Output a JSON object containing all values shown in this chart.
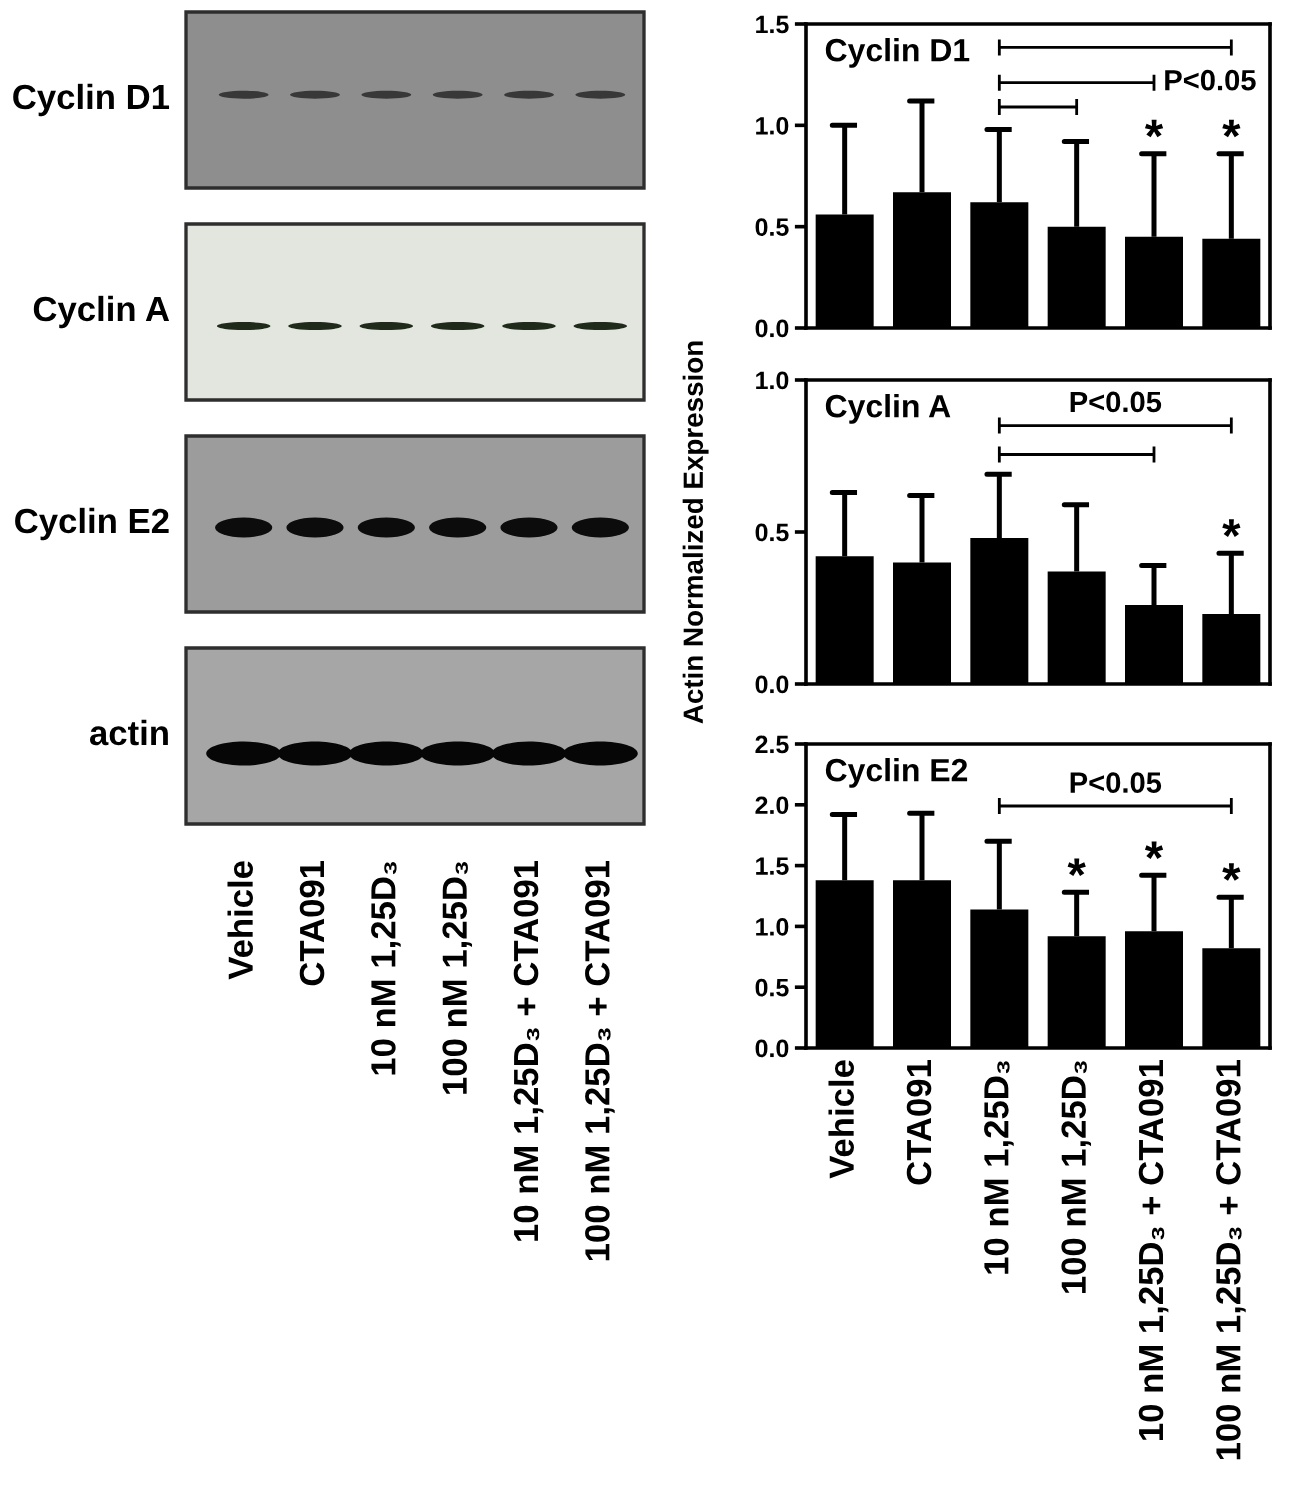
{
  "chart_data": [
    {
      "type": "other",
      "categories": [
        "Vehicle",
        "CTA091",
        "10 nM 1,25D₃",
        "100 nM 1,25D₃",
        "10 nM 1,25D₃ + CTA091",
        "100 nM 1,25D₃ + CTA091"
      ],
      "annotations": [
        "Cyclin D1",
        "Cyclin A",
        "Cyclin E2",
        "actin"
      ]
    },
    {
      "type": "bar",
      "title": "Cyclin D1",
      "categories": [
        null,
        null,
        null,
        null,
        null,
        null
      ],
      "color": "#000000",
      "values": [
        0.56,
        0.67,
        0.62,
        0.5,
        0.45,
        0.44
      ],
      "errors": [
        [
          0.56,
          1.0
        ],
        [
          0.67,
          1.12
        ],
        [
          0.62,
          0.98
        ],
        [
          0.5,
          0.92
        ],
        [
          0.45,
          0.86
        ],
        [
          0.44,
          0.86
        ]
      ],
      "value_labels": [
        null,
        null,
        null,
        null,
        "*",
        "*"
      ],
      "annotations": [
        "P<0.05"
      ],
      "ylim": [
        0,
        1.5
      ],
      "yticks": [
        {
          "value": 0,
          "label": "0.0"
        },
        0.5,
        {
          "value": 1,
          "label": "1.0"
        },
        1.5
      ]
    },
    {
      "type": "bar",
      "title": "Cyclin A",
      "ylabel": "Actin Normalized Expression",
      "categories": [
        null,
        null,
        null,
        null,
        null,
        null
      ],
      "color": "#000000",
      "values": [
        0.42,
        0.4,
        0.48,
        0.37,
        0.26,
        0.23
      ],
      "errors": [
        [
          0.42,
          0.63
        ],
        [
          0.4,
          0.62
        ],
        [
          0.48,
          0.69
        ],
        [
          0.37,
          0.59
        ],
        [
          0.26,
          0.39
        ],
        [
          0.23,
          0.43
        ]
      ],
      "value_labels": [
        null,
        null,
        null,
        null,
        null,
        "*"
      ],
      "annotations": [
        "P<0.05"
      ],
      "ylim": [
        0,
        1
      ],
      "yticks": [
        {
          "value": 0,
          "label": "0.0"
        },
        0.5,
        {
          "value": 1,
          "label": "1.0"
        }
      ]
    },
    {
      "type": "bar",
      "title": "Cyclin E2",
      "categories": [
        "Vehicle",
        "CTA091",
        "10 nM 1,25D₃",
        "100 nM 1,25D₃",
        "10 nM 1,25D₃ + CTA091",
        "100 nM 1,25D₃ + CTA091"
      ],
      "color": "#000000",
      "values": [
        1.38,
        1.38,
        1.14,
        0.92,
        0.96,
        0.82
      ],
      "errors": [
        [
          1.38,
          1.92
        ],
        [
          1.38,
          1.93
        ],
        [
          1.14,
          1.7
        ],
        [
          0.92,
          1.28
        ],
        [
          0.96,
          1.42
        ],
        [
          0.82,
          1.24
        ]
      ],
      "value_labels": [
        null,
        null,
        null,
        "*",
        "*",
        "*"
      ],
      "annotations": [
        "P<0.05"
      ],
      "ylim": [
        0,
        2.5
      ],
      "yticks": [
        {
          "value": 0,
          "label": "0.0"
        },
        0.5,
        {
          "value": 1,
          "label": "1.0"
        },
        1.5,
        {
          "value": 2,
          "label": "2.0"
        },
        2.5
      ]
    }
  ]
}
